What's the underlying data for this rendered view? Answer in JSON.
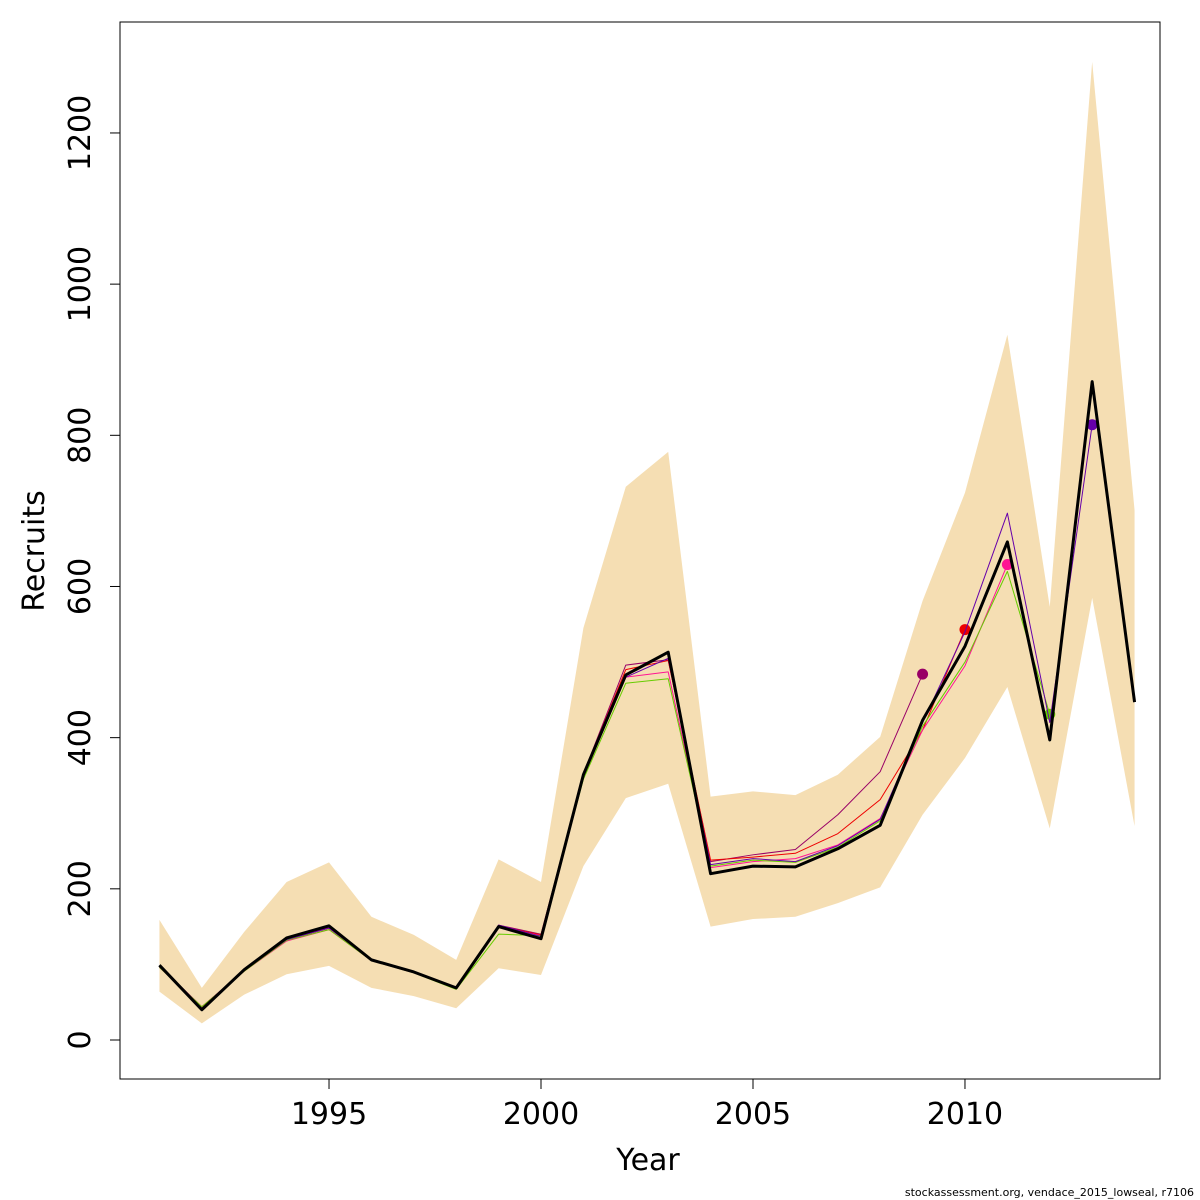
{
  "chart_data": {
    "type": "line",
    "xlabel": "Year",
    "ylabel": "Recruits",
    "footer": "stockassessment.org, vendace_2015_lowseal, r7106",
    "x": [
      1991,
      1992,
      1993,
      1994,
      1995,
      1996,
      1997,
      1998,
      1999,
      2000,
      2001,
      2002,
      2003,
      2004,
      2005,
      2006,
      2007,
      2008,
      2009,
      2010,
      2011,
      2012,
      2013,
      2014
    ],
    "xlim": [
      1990.07,
      2014.6
    ],
    "xticks": [
      1995,
      2000,
      2005,
      2010
    ],
    "ylim": [
      -51.6,
      1346.8
    ],
    "yticks": [
      0,
      200,
      400,
      600,
      800,
      1000,
      1200
    ],
    "band": {
      "color": "#f5deb3",
      "upper": [
        159,
        69,
        143,
        209,
        235,
        163,
        139,
        106,
        239,
        209,
        545,
        732,
        778,
        322,
        329,
        324,
        351,
        401,
        581,
        724,
        933,
        573,
        1294,
        701
      ],
      "lower": [
        64,
        22,
        60,
        87,
        98,
        69,
        58,
        42,
        95,
        86,
        230,
        320,
        339,
        150,
        160,
        163,
        181,
        202,
        298,
        373,
        467,
        280,
        585,
        283
      ]
    },
    "series": [
      {
        "color": "#000000",
        "values": [
          99,
          40,
          93,
          135,
          151,
          106,
          90,
          69,
          150,
          134,
          351,
          483,
          513,
          220,
          230,
          229,
          253,
          284,
          423,
          521,
          659,
          397,
          871,
          447
        ]
      },
      {
        "color": "#6600aa",
        "values": [
          97,
          42,
          92,
          133,
          148,
          106,
          90,
          68,
          152,
          137,
          350,
          480,
          505,
          232,
          240,
          236,
          257,
          292,
          420,
          540,
          697,
          420,
          814,
          null
        ]
      },
      {
        "color": "#66cc00",
        "values": [
          96,
          44,
          91,
          132,
          146,
          105,
          89,
          67,
          140,
          138,
          345,
          472,
          478,
          230,
          238,
          235,
          255,
          290,
          415,
          500,
          620,
          431,
          null,
          null
        ]
      },
      {
        "color": "#ff1493",
        "values": [
          96,
          44,
          91,
          131,
          146,
          105,
          89,
          68,
          150,
          138,
          348,
          480,
          487,
          228,
          236,
          240,
          258,
          293,
          410,
          495,
          629,
          null,
          null,
          null
        ]
      },
      {
        "color": "#ee0000",
        "values": [
          97,
          43,
          92,
          133,
          148,
          106,
          90,
          68,
          151,
          139,
          352,
          490,
          502,
          238,
          242,
          247,
          273,
          318,
          410,
          543,
          null,
          null,
          null,
          null
        ]
      },
      {
        "color": "#990066",
        "values": [
          98,
          44,
          92,
          134,
          149,
          106,
          90,
          68,
          152,
          140,
          352,
          496,
          503,
          236,
          245,
          252,
          298,
          355,
          484,
          null,
          null,
          null,
          null,
          null
        ]
      }
    ]
  }
}
